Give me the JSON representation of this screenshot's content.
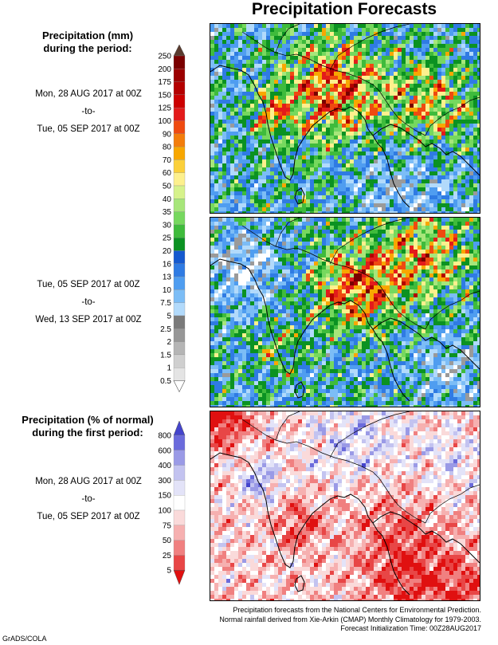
{
  "title": "Precipitation Forecasts",
  "mm_legend": {
    "heading_line1": "Precipitation (mm)",
    "heading_line2": "during the period:",
    "labels": [
      "250",
      "200",
      "175",
      "150",
      "125",
      "100",
      "90",
      "80",
      "70",
      "60",
      "50",
      "40",
      "35",
      "30",
      "25",
      "20",
      "16",
      "13",
      "10",
      "7.5",
      "5",
      "2.5",
      "2",
      "1.5",
      "1",
      "0.5"
    ],
    "colors": [
      "#5a3b2e",
      "#7a0000",
      "#9b0000",
      "#b40000",
      "#cc0000",
      "#e31b1b",
      "#ef4a10",
      "#f37d0b",
      "#f8a700",
      "#fbd03a",
      "#fdf08d",
      "#d6f28b",
      "#a7e67a",
      "#76d85e",
      "#3fbb3c",
      "#0b9222",
      "#1559cf",
      "#2f7be3",
      "#4f9df0",
      "#7cbdf6",
      "#b2dafb",
      "#7a7a7a",
      "#979797",
      "#b5b5b5",
      "#cfcfcf",
      "#e4e4e4"
    ]
  },
  "pct_legend": {
    "heading_line1": "Precipitation (% of normal)",
    "heading_line2": "during the first period:",
    "labels": [
      "800",
      "600",
      "400",
      "300",
      "150",
      "100",
      "75",
      "50",
      "25",
      "5"
    ],
    "colors": [
      "#4444cc",
      "#6b6bdc",
      "#9a9ae6",
      "#c3c3f0",
      "#e3e3f8",
      "#ffffff",
      "#fadada",
      "#f6b0b0",
      "#f08080",
      "#e84646",
      "#e01010"
    ]
  },
  "period1": {
    "start": "Mon, 28 AUG 2017 at 00Z",
    "sep": "-to-",
    "end": "Tue, 05 SEP 2017 at 00Z"
  },
  "period2": {
    "start": "Tue, 05 SEP 2017 at 00Z",
    "sep": "-to-",
    "end": "Wed, 13 SEP 2017 at 00Z"
  },
  "period3": {
    "start": "Mon, 28 AUG 2017 at 00Z",
    "sep": "-to-",
    "end": "Tue, 05 SEP 2017 at 00Z"
  },
  "credit": {
    "line1": "Precipitation forecasts from the National Centers for Environmental Prediction.",
    "line2": "Normal rainfall derived from Xie-Arkin (CMAP) Monthly Climatology for 1979-2003.",
    "line3": "Forecast Initialization Time: 00Z28AUG2017"
  },
  "brand": "GrADS/COLA"
}
